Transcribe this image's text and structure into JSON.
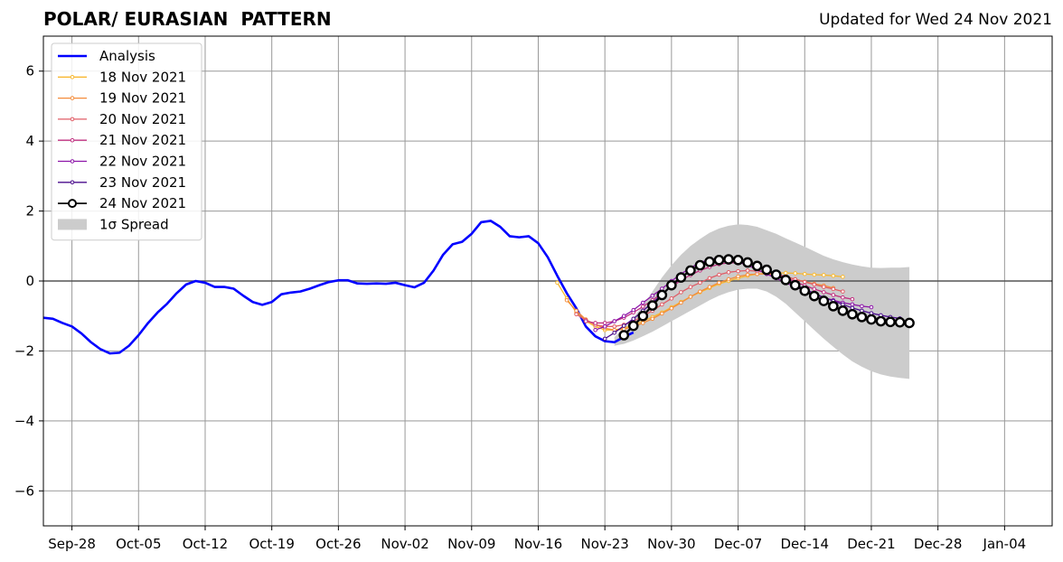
{
  "title": "POLAR/ EURASIAN  PATTERN",
  "subtitle": "Updated for Wed 24 Nov 2021",
  "chart_data": {
    "type": "line",
    "title": "POLAR/ EURASIAN  PATTERN",
    "xlabel": "",
    "ylabel": "",
    "x_tick_labels": [
      "Sep-28",
      "Oct-05",
      "Oct-12",
      "Oct-19",
      "Oct-26",
      "Nov-02",
      "Nov-09",
      "Nov-16",
      "Nov-23",
      "Nov-30",
      "Dec-07",
      "Dec-14",
      "Dec-21",
      "Dec-28",
      "Jan-04"
    ],
    "y_tick_labels": [
      "−6",
      "−4",
      "−2",
      "0",
      "2",
      "4",
      "6"
    ],
    "x_range": [
      "2021-09-25",
      "2022-01-09"
    ],
    "ylim": [
      -7,
      7
    ],
    "grid": true,
    "legend_position": "top-left",
    "series": [
      {
        "name": "Analysis",
        "color": "#0000ff",
        "start_date": "2021-09-25",
        "values": [
          -1.05,
          -1.08,
          -1.2,
          -1.3,
          -1.5,
          -1.75,
          -1.95,
          -2.07,
          -2.05,
          -1.85,
          -1.55,
          -1.2,
          -0.9,
          -0.65,
          -0.35,
          -0.1,
          0.0,
          -0.05,
          -0.17,
          -0.17,
          -0.22,
          -0.42,
          -0.6,
          -0.68,
          -0.6,
          -0.38,
          -0.33,
          -0.3,
          -0.22,
          -0.12,
          -0.03,
          0.02,
          0.02,
          -0.07,
          -0.08,
          -0.07,
          -0.08,
          -0.05,
          -0.12,
          -0.18,
          -0.05,
          0.3,
          0.75,
          1.05,
          1.12,
          1.35,
          1.68,
          1.72,
          1.55,
          1.28,
          1.25,
          1.28,
          1.08,
          0.68,
          0.15,
          -0.35,
          -0.78,
          -1.3,
          -1.58,
          -1.72,
          -1.75,
          -1.6,
          -1.47
        ]
      },
      {
        "name": "18 Nov 2021",
        "color": "#f8b830",
        "start_date": "2021-11-18",
        "values": [
          -0.05,
          -0.5,
          -0.9,
          -1.15,
          -1.3,
          -1.4,
          -1.4,
          -1.35,
          -1.25,
          -1.15,
          -1.03,
          -0.9,
          -0.75,
          -0.6,
          -0.45,
          -0.32,
          -0.2,
          -0.08,
          0.0,
          0.08,
          0.15,
          0.2,
          0.22,
          0.23,
          0.23,
          0.22,
          0.2,
          0.18,
          0.17,
          0.15,
          0.12
        ]
      },
      {
        "name": "19 Nov 2021",
        "color": "#f48c3a",
        "start_date": "2021-11-19",
        "values": [
          -0.55,
          -0.85,
          -1.1,
          -1.25,
          -1.35,
          -1.4,
          -1.38,
          -1.3,
          -1.2,
          -1.08,
          -0.93,
          -0.78,
          -0.62,
          -0.45,
          -0.3,
          -0.17,
          -0.05,
          0.05,
          0.13,
          0.18,
          0.2,
          0.2,
          0.18,
          0.12,
          0.05,
          -0.02,
          -0.08,
          -0.13,
          -0.2
        ]
      },
      {
        "name": "20 Nov 2021",
        "color": "#e05c66",
        "start_date": "2021-11-20",
        "values": [
          -0.95,
          -1.12,
          -1.25,
          -1.3,
          -1.3,
          -1.25,
          -1.15,
          -1.0,
          -0.85,
          -0.67,
          -0.5,
          -0.32,
          -0.17,
          -0.05,
          0.08,
          0.18,
          0.25,
          0.28,
          0.3,
          0.28,
          0.25,
          0.2,
          0.13,
          0.05,
          -0.03,
          -0.1,
          -0.17,
          -0.23,
          -0.3
        ]
      },
      {
        "name": "21 Nov 2021",
        "color": "#c03080",
        "start_date": "2021-11-21",
        "values": [
          -1.15,
          -1.2,
          -1.2,
          -1.15,
          -1.05,
          -0.9,
          -0.73,
          -0.55,
          -0.35,
          -0.17,
          0.02,
          0.17,
          0.3,
          0.4,
          0.48,
          0.52,
          0.52,
          0.48,
          0.42,
          0.32,
          0.2,
          0.1,
          -0.02,
          -0.13,
          -0.23,
          -0.32,
          -0.4,
          -0.47,
          -0.52
        ]
      },
      {
        "name": "22 Nov 2021",
        "color": "#8c14a8",
        "start_date": "2021-11-22",
        "values": [
          -1.4,
          -1.3,
          -1.15,
          -1.0,
          -0.83,
          -0.62,
          -0.42,
          -0.22,
          0.0,
          0.2,
          0.38,
          0.52,
          0.62,
          0.65,
          0.62,
          0.55,
          0.45,
          0.33,
          0.2,
          0.08,
          -0.05,
          -0.17,
          -0.28,
          -0.38,
          -0.47,
          -0.55,
          -0.62,
          -0.67,
          -0.72,
          -0.75
        ]
      },
      {
        "name": "23 Nov 2021",
        "color": "#4a0c8c",
        "start_date": "2021-11-23",
        "values": [
          -1.65,
          -1.48,
          -1.28,
          -1.08,
          -0.85,
          -0.62,
          -0.38,
          -0.15,
          0.08,
          0.3,
          0.48,
          0.6,
          0.65,
          0.65,
          0.6,
          0.52,
          0.42,
          0.3,
          0.17,
          0.03,
          -0.1,
          -0.23,
          -0.35,
          -0.47,
          -0.57,
          -0.67,
          -0.77,
          -0.85,
          -0.92,
          -0.98,
          -1.03,
          -1.07
        ]
      },
      {
        "name": "24 Nov 2021",
        "color": "#000000",
        "marker_fill": "#ffffff",
        "start_date": "2021-11-25",
        "values": [
          -1.55,
          -1.28,
          -1.0,
          -0.7,
          -0.4,
          -0.12,
          0.1,
          0.3,
          0.45,
          0.55,
          0.6,
          0.62,
          0.6,
          0.53,
          0.43,
          0.32,
          0.18,
          0.03,
          -0.12,
          -0.28,
          -0.43,
          -0.57,
          -0.72,
          -0.85,
          -0.95,
          -1.03,
          -1.1,
          -1.15,
          -1.17,
          -1.18,
          -1.2
        ]
      }
    ],
    "spread": {
      "name": "1σ Spread",
      "color": "#cccccc",
      "start_date": "2021-11-24",
      "upper": [
        -1.6,
        -1.35,
        -1.05,
        -0.7,
        -0.3,
        0.1,
        0.45,
        0.75,
        1.0,
        1.2,
        1.38,
        1.5,
        1.58,
        1.62,
        1.6,
        1.55,
        1.45,
        1.35,
        1.22,
        1.1,
        0.98,
        0.85,
        0.72,
        0.62,
        0.54,
        0.47,
        0.42,
        0.38,
        0.37,
        0.38,
        0.38,
        0.4
      ],
      "lower": [
        -1.85,
        -1.8,
        -1.7,
        -1.58,
        -1.45,
        -1.3,
        -1.15,
        -1.0,
        -0.85,
        -0.7,
        -0.55,
        -0.42,
        -0.32,
        -0.25,
        -0.22,
        -0.22,
        -0.3,
        -0.45,
        -0.65,
        -0.9,
        -1.15,
        -1.4,
        -1.65,
        -1.88,
        -2.1,
        -2.3,
        -2.45,
        -2.58,
        -2.67,
        -2.73,
        -2.77,
        -2.8
      ]
    }
  }
}
